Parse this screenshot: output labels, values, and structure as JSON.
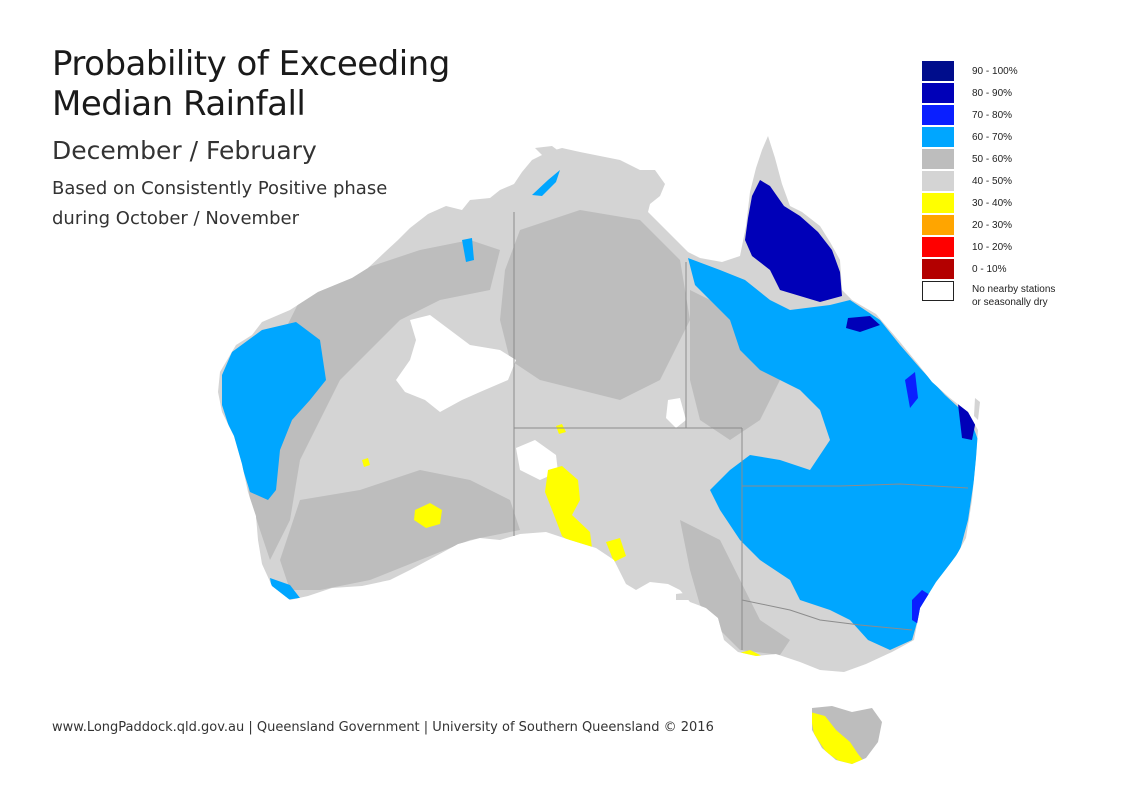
{
  "title": {
    "line1": "Probability of Exceeding",
    "line2": "Median Rainfall",
    "subtitle": "December / February",
    "note_line1": "Based on Consistently Positive phase",
    "note_line2": "during October / November"
  },
  "legend": {
    "items": [
      {
        "label": "90 - 100%",
        "color": "#000d8c"
      },
      {
        "label": "80 - 90%",
        "color": "#0000b8"
      },
      {
        "label": "70 - 80%",
        "color": "#0a1fff"
      },
      {
        "label": "60 - 70%",
        "color": "#00a6ff"
      },
      {
        "label": "50 - 60%",
        "color": "#bdbdbd"
      },
      {
        "label": "40 - 50%",
        "color": "#d4d4d4"
      },
      {
        "label": "30 - 40%",
        "color": "#ffff00"
      },
      {
        "label": "20 - 30%",
        "color": "#ffa500"
      },
      {
        "label": "10 - 20%",
        "color": "#ff0000"
      },
      {
        "label": "0 - 10%",
        "color": "#b30000"
      },
      {
        "label_line1": "No nearby stations",
        "label_line2": "or seasonally dry",
        "color": "#ffffff"
      }
    ]
  },
  "footer": "www.LongPaddock.qld.gov.au | Queensland Government | University of Southern Queensland © 2016"
}
